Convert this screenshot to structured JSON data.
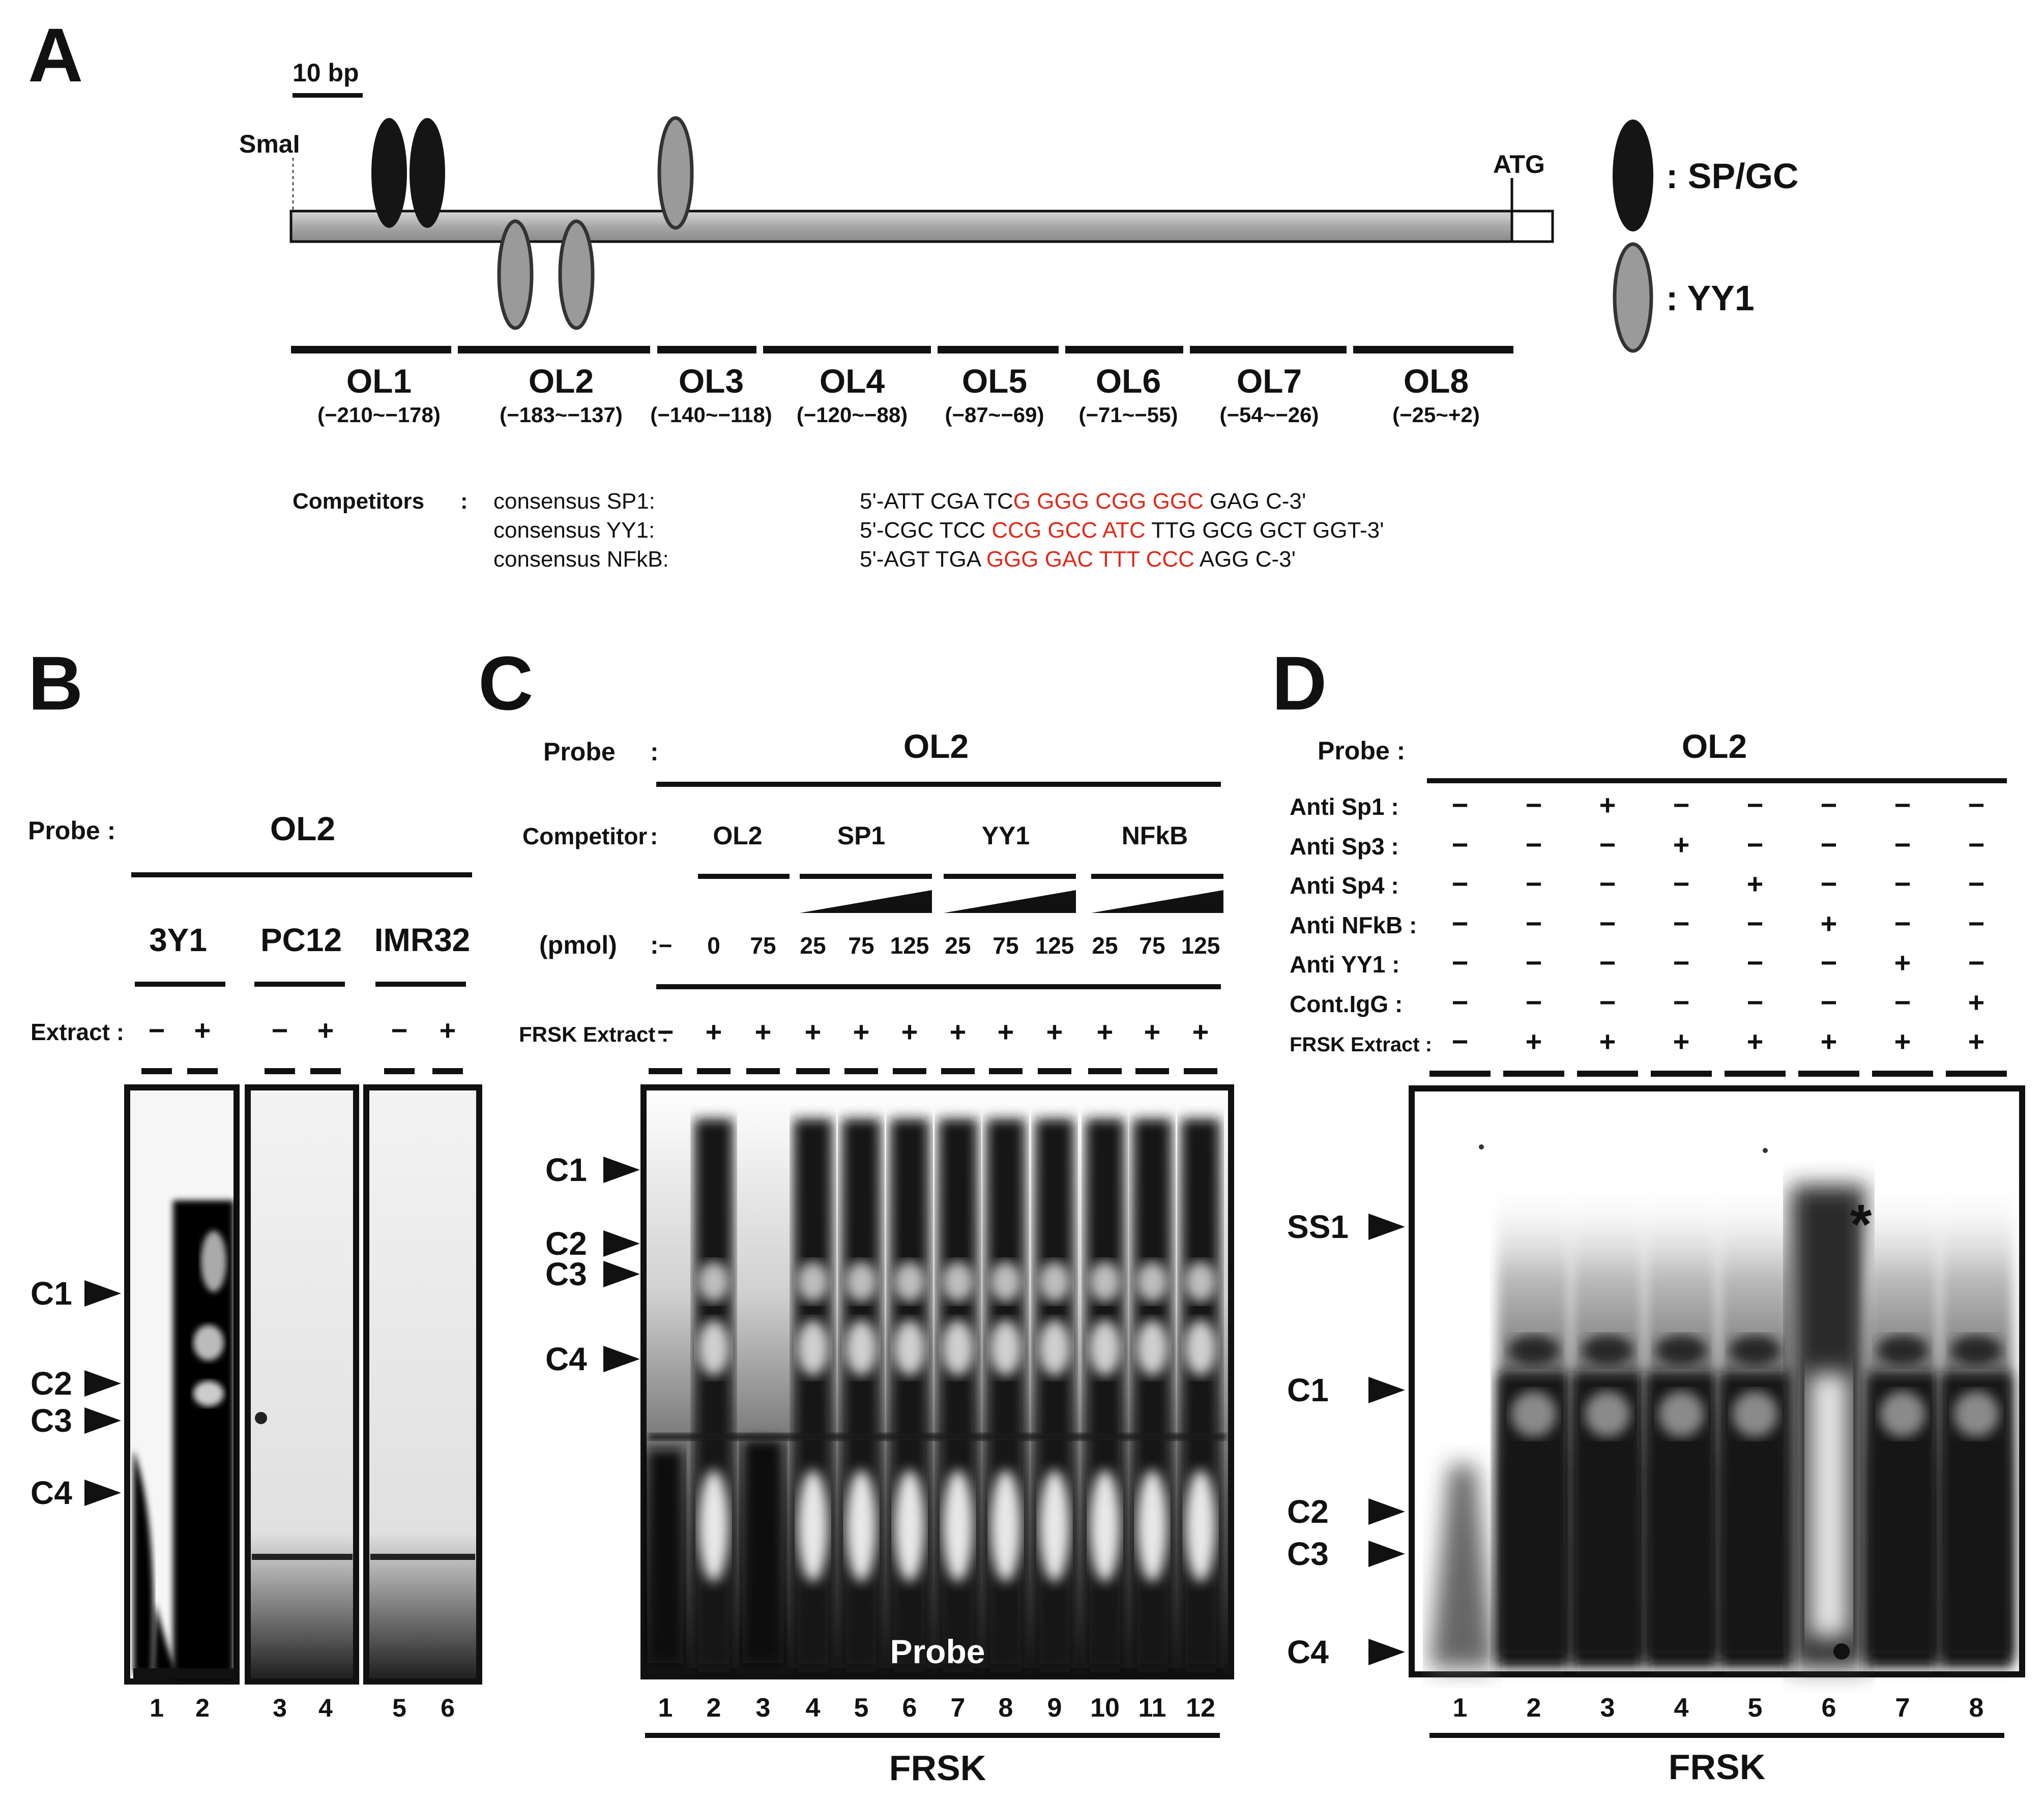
{
  "panels": {
    "A": {
      "letter": "A",
      "scale_label": "10 bp",
      "smai_label": "SmaI",
      "atg_label": "ATG",
      "legend": [
        {
          "label": ": SP/GC",
          "color": "#111111"
        },
        {
          "label": ": YY1",
          "color": "#9a9a9a"
        }
      ],
      "oligos": [
        {
          "name": "OL1",
          "range": "(−210~−178)"
        },
        {
          "name": "OL2",
          "range": "(−183~−137)"
        },
        {
          "name": "OL3",
          "range": "(−140~−118)"
        },
        {
          "name": "OL4",
          "range": "(−120~−88)"
        },
        {
          "name": "OL5",
          "range": "(−87~−69)"
        },
        {
          "name": "OL6",
          "range": "(−71~−55)"
        },
        {
          "name": "OL7",
          "range": "(−54~−26)"
        },
        {
          "name": "OL8",
          "range": "(−25~+2)"
        }
      ],
      "competitors_label": "Competitors",
      "competitors_colon": ":",
      "competitors": [
        {
          "name": "consensus SP1:",
          "pre": "5'-ATT CGA TC",
          "core": "G GGG CGG GGC",
          "post": " GAG C-3'"
        },
        {
          "name": "consensus YY1:",
          "pre": "5'-CGC TCC ",
          "core": "CCG GCC ATC",
          "post": " TTG GCG GCT GGT-3'"
        },
        {
          "name": "consensus NFkB:",
          "pre": "5'-AGT TGA ",
          "core": "GGG GAC TTT CCC",
          "post": " AGG C-3'"
        }
      ]
    },
    "B": {
      "letter": "B",
      "probe_label": "Probe :",
      "probe_value": "OL2",
      "groups": [
        "3Y1",
        "PC12",
        "IMR32"
      ],
      "extract_label": "Extract :",
      "extract_signs": [
        "−",
        "+",
        "−",
        "+",
        "−",
        "+"
      ],
      "bands": [
        "C1",
        "C2",
        "C3",
        "C4"
      ],
      "lanes": [
        "1",
        "2",
        "3",
        "4",
        "5",
        "6"
      ]
    },
    "C": {
      "letter": "C",
      "probe_label": "Probe",
      "colon": ":",
      "probe_value": "OL2",
      "competitor_label": "Competitor",
      "competitor_groups": [
        "OL2",
        "SP1",
        "YY1",
        "NFkB"
      ],
      "pmol_label": "(pmol)",
      "pmol_values": [
        "−",
        "0",
        "75",
        "25",
        "75",
        "125",
        "25",
        "75",
        "125",
        "25",
        "75",
        "125"
      ],
      "extract_label": "FRSK Extract :",
      "extract_signs": [
        "−",
        "+",
        "+",
        "+",
        "+",
        "+",
        "+",
        "+",
        "+",
        "+",
        "+",
        "+"
      ],
      "bands": [
        "C1",
        "C2",
        "C3",
        "C4"
      ],
      "probe_band_label": "Probe",
      "lanes": [
        "1",
        "2",
        "3",
        "4",
        "5",
        "6",
        "7",
        "8",
        "9",
        "10",
        "11",
        "12"
      ],
      "bottom_label": "FRSK"
    },
    "D": {
      "letter": "D",
      "probe_label": "Probe :",
      "probe_value": "OL2",
      "rows": [
        {
          "label": "Anti Sp1 :",
          "signs": [
            "−",
            "−",
            "+",
            "−",
            "−",
            "−",
            "−",
            "−"
          ]
        },
        {
          "label": "Anti Sp3 :",
          "signs": [
            "−",
            "−",
            "−",
            "+",
            "−",
            "−",
            "−",
            "−"
          ]
        },
        {
          "label": "Anti Sp4 :",
          "signs": [
            "−",
            "−",
            "−",
            "−",
            "+",
            "−",
            "−",
            "−"
          ]
        },
        {
          "label": "Anti NFkB :",
          "signs": [
            "−",
            "−",
            "−",
            "−",
            "−",
            "+",
            "−",
            "−"
          ]
        },
        {
          "label": "Anti YY1 :",
          "signs": [
            "−",
            "−",
            "−",
            "−",
            "−",
            "−",
            "+",
            "−"
          ]
        },
        {
          "label": "Cont.IgG :",
          "signs": [
            "−",
            "−",
            "−",
            "−",
            "−",
            "−",
            "−",
            "+"
          ]
        },
        {
          "label": "FRSK Extract :",
          "signs": [
            "−",
            "+",
            "+",
            "+",
            "+",
            "+",
            "+",
            "+"
          ]
        }
      ],
      "bands": [
        "SS1",
        "C1",
        "C2",
        "C3",
        "C4"
      ],
      "asterisk": "*",
      "lanes": [
        "1",
        "2",
        "3",
        "4",
        "5",
        "6",
        "7",
        "8"
      ],
      "bottom_label": "FRSK"
    }
  }
}
